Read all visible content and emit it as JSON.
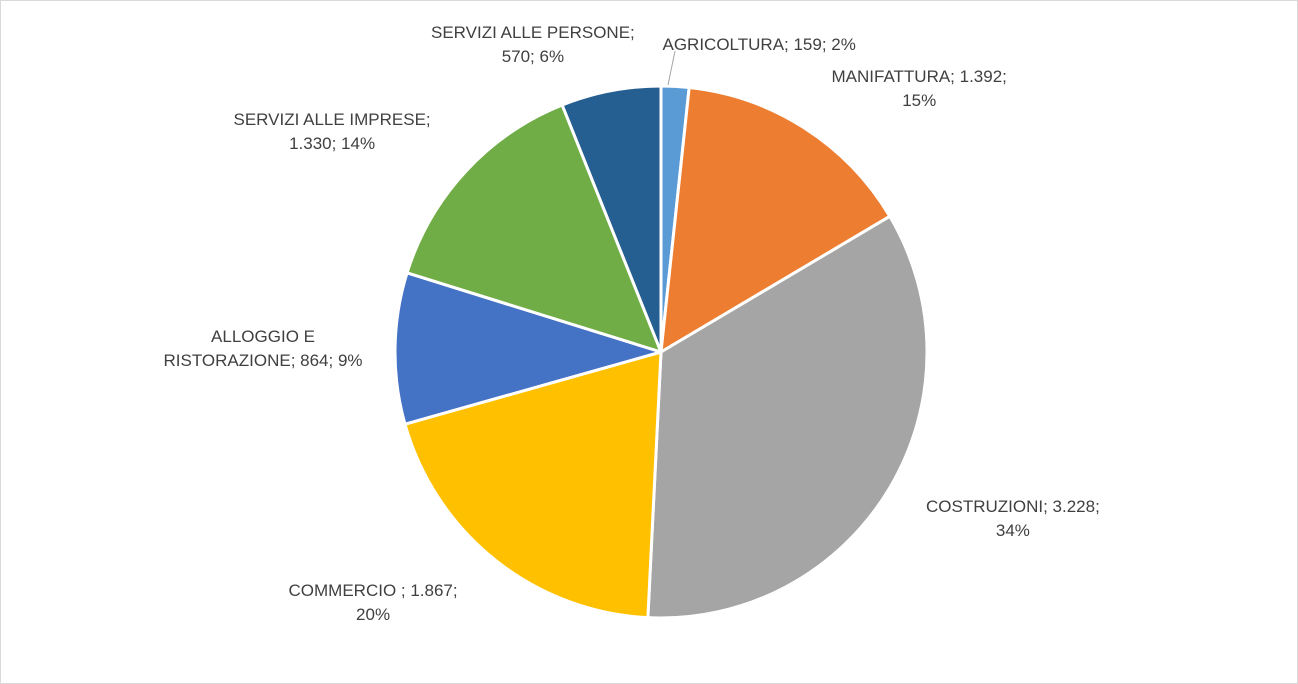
{
  "chart_data": {
    "type": "pie",
    "title": "",
    "legend": "none",
    "slices": [
      {
        "category": "AGRICOLTURA",
        "value": 159,
        "percent": "2%",
        "label_lines": [
          "AGRICOLTURA; 159; 2%"
        ],
        "color": "#5b9bd5"
      },
      {
        "category": "MANIFATTURA",
        "value": 1392,
        "percent": "15%",
        "label_lines": [
          "MANIFATTURA; 1.392;",
          "15%"
        ],
        "color": "#ed7d31"
      },
      {
        "category": "COSTRUZIONI",
        "value": 3228,
        "percent": "34%",
        "label_lines": [
          "COSTRUZIONI; 3.228;",
          "34%"
        ],
        "color": "#a5a5a5"
      },
      {
        "category": "COMMERCIO",
        "value": 1867,
        "percent": "20%",
        "label_lines": [
          "COMMERCIO ; 1.867;",
          "20%"
        ],
        "color": "#ffc000"
      },
      {
        "category": "ALLOGGIO E RISTORAZIONE",
        "value": 864,
        "percent": "9%",
        "label_lines": [
          "ALLOGGIO E",
          "RISTORAZIONE; 864; 9%"
        ],
        "color": "#4472c4"
      },
      {
        "category": "SERVIZI ALLE IMPRESE",
        "value": 1330,
        "percent": "14%",
        "label_lines": [
          "SERVIZI ALLE IMPRESE;",
          "1.330; 14%"
        ],
        "color": "#70ad47"
      },
      {
        "category": "SERVIZI ALLE PERSONE",
        "value": 570,
        "percent": "6%",
        "label_lines": [
          "SERVIZI ALLE PERSONE;",
          "570; 6%"
        ],
        "color": "#255e91"
      }
    ]
  }
}
